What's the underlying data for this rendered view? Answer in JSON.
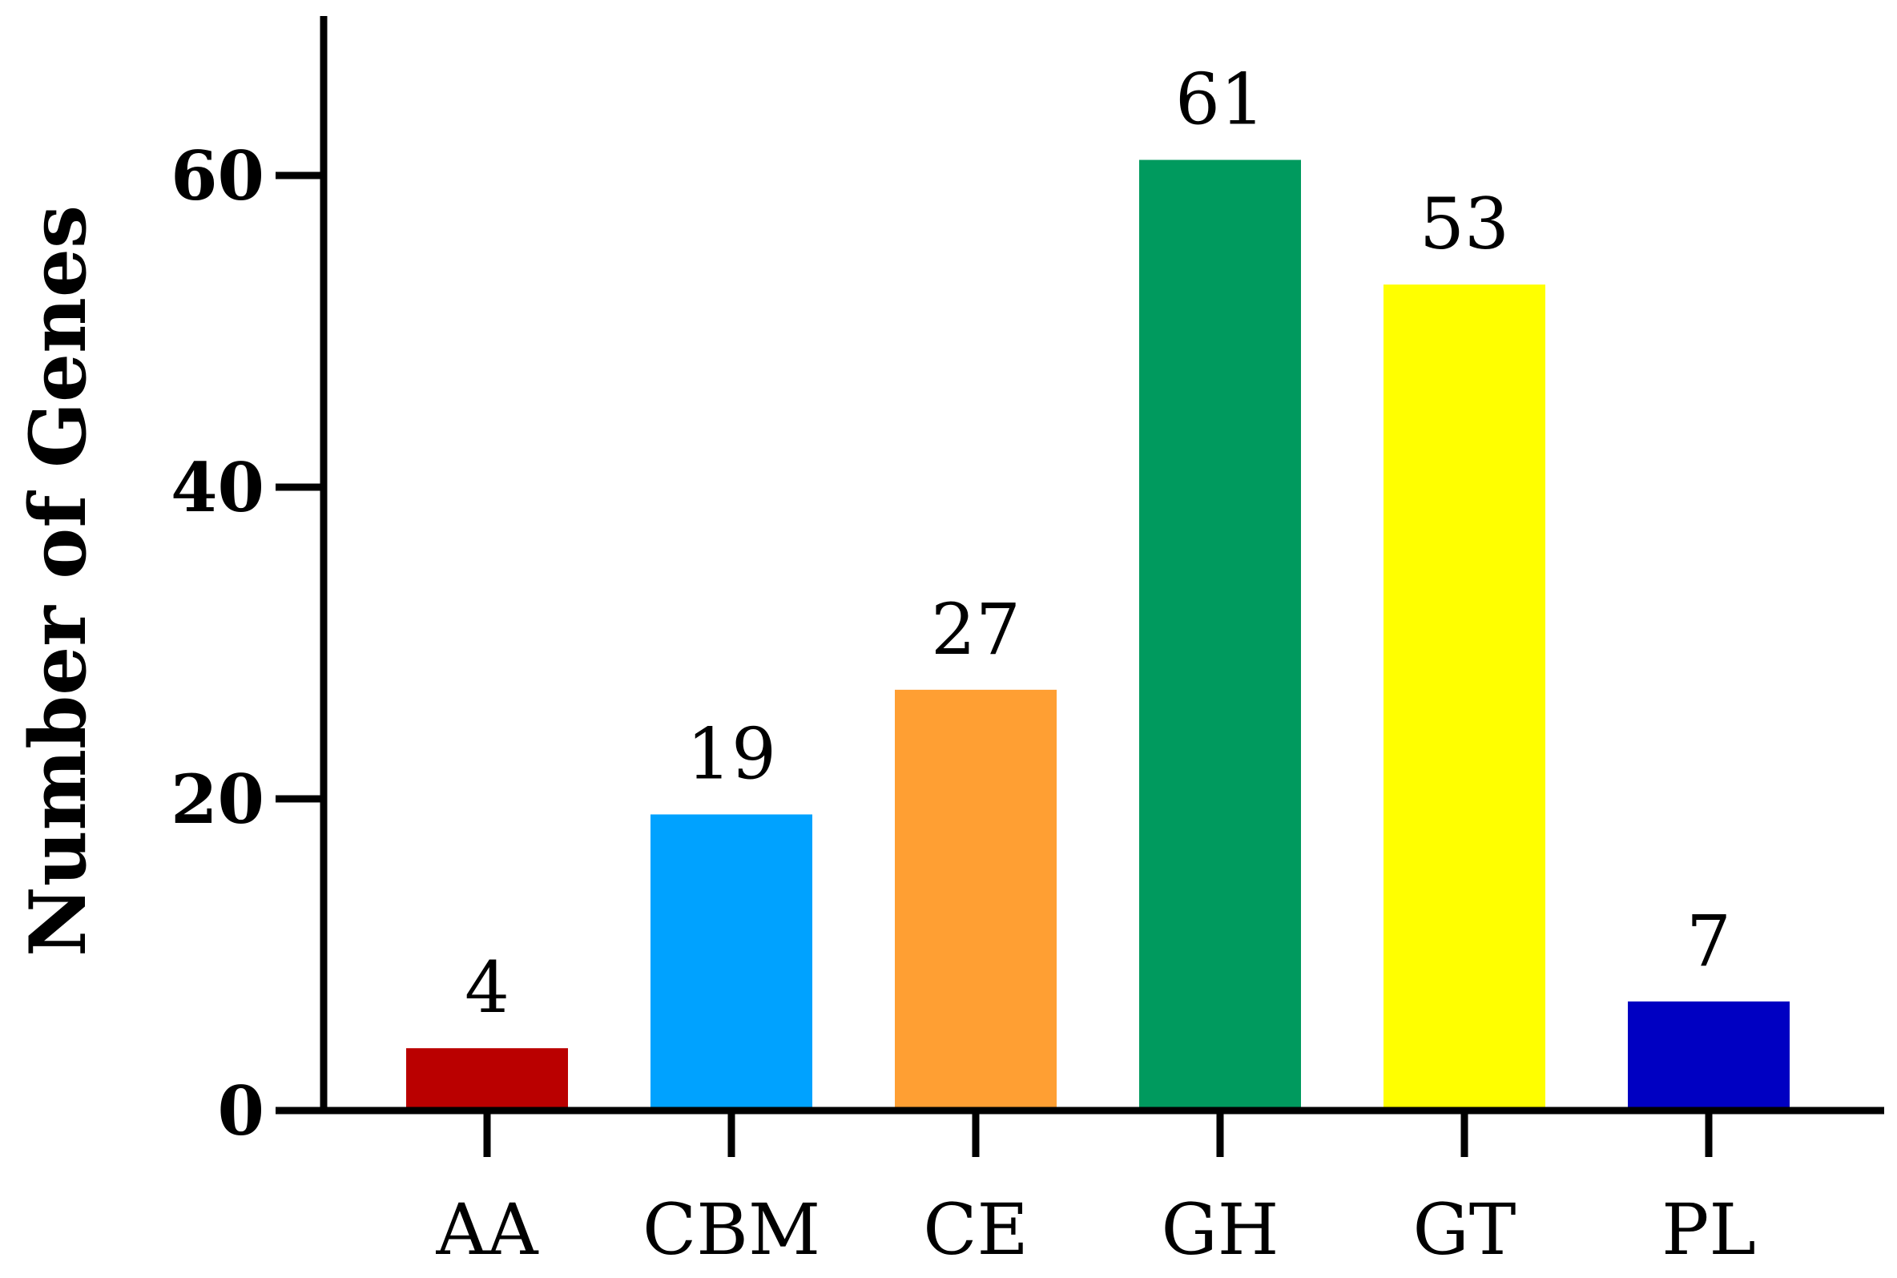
{
  "chart_data": {
    "type": "bar",
    "title": "",
    "xlabel": "",
    "ylabel": "Number of Genes",
    "categories": [
      "AA",
      "CBM",
      "CE",
      "GH",
      "GT",
      "PL"
    ],
    "values": [
      4,
      19,
      27,
      61,
      53,
      7
    ],
    "data_labels": [
      "4",
      "19",
      "27",
      "61",
      "53",
      "7"
    ],
    "bar_colors": [
      "#BA0000",
      "#00A2FF",
      "#FF9F33",
      "#009A5E",
      "#FFFF00",
      "#0000C2"
    ],
    "ylim": [
      0,
      70
    ],
    "yticks": [
      0,
      20,
      40,
      60
    ],
    "ytick_labels": [
      "0",
      "20",
      "40",
      "60"
    ],
    "grid": false,
    "legend": "none"
  }
}
